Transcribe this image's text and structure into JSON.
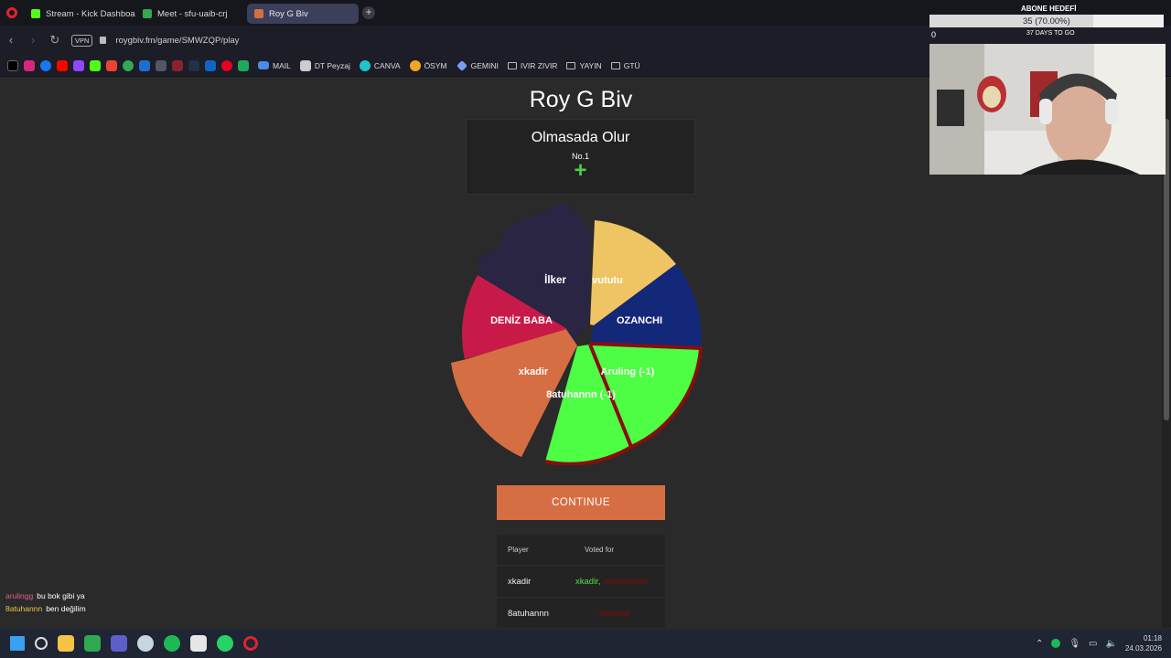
{
  "browser": {
    "tabs": [
      {
        "label": "Stream - Kick Dashboard",
        "icon": "kick-icon",
        "color": "#53fc18"
      },
      {
        "label": "Meet - sfu-uaib-crj",
        "icon": "meet-icon",
        "color": "#34a853"
      },
      {
        "label": "Roy G Biv",
        "icon": "roygbiv-icon",
        "color": "#d66e43"
      }
    ],
    "vpn_label": "VPN",
    "url": "roygbiv.fm/game/SMWZQP/play",
    "bookmarks": [
      {
        "label": "MAIL",
        "icon": "mail-icon"
      },
      {
        "label": "DT Peyzaj",
        "icon": "dt-icon"
      },
      {
        "label": "CANVA",
        "icon": "canva-icon"
      },
      {
        "label": "ÖSYM",
        "icon": "osym-icon"
      },
      {
        "label": "GEMINI",
        "icon": "gemini-icon"
      },
      {
        "label": "IVIR ZIVIR",
        "icon": "folder-icon"
      },
      {
        "label": "YAYIN",
        "icon": "folder-icon"
      },
      {
        "label": "GTÜ",
        "icon": "folder-icon"
      }
    ]
  },
  "game": {
    "title": "Roy G Biv",
    "prompt": "Olmasada Olur",
    "rank": "No.1",
    "continue_label": "CONTINUE",
    "slice_labels": {
      "ilker": "İlker",
      "vututu": "vututu",
      "ozanchi": "OZANCHI",
      "aruling": "Aruling (-1)",
      "atuhannn": "8atuhannn (-1)",
      "xkadir": "xkadir",
      "deniz": "DENİZ BABA"
    },
    "colors": {
      "ilker": "#2b2544",
      "vututu": "#efc463",
      "ozanchi": "#14287a",
      "green": "#4dfe44",
      "xkadir": "#d66e43",
      "deniz": "#c71a48",
      "border_red": "#8a0c0c"
    },
    "votes_table": {
      "headers": [
        "Player",
        "Voted for"
      ],
      "rows": [
        {
          "player": "xkadir",
          "voted_for": "xkadir,"
        },
        {
          "player": "8atuhannn",
          "voted_for": ""
        }
      ]
    }
  },
  "stream_overlay": {
    "goal_label": "ABONE HEDEFİ",
    "goal_value": "35 (70.00%)",
    "goal_progress": 0.7,
    "goal_start": "0",
    "goal_days": "37 DAYS TO GO",
    "chat": [
      {
        "user": "arulingg",
        "message": "bu bok gibi ya"
      },
      {
        "user": "8atuhannn",
        "message": "ben değilim"
      }
    ]
  },
  "taskbar": {
    "time": "01:18",
    "date": "24.03.2026"
  }
}
